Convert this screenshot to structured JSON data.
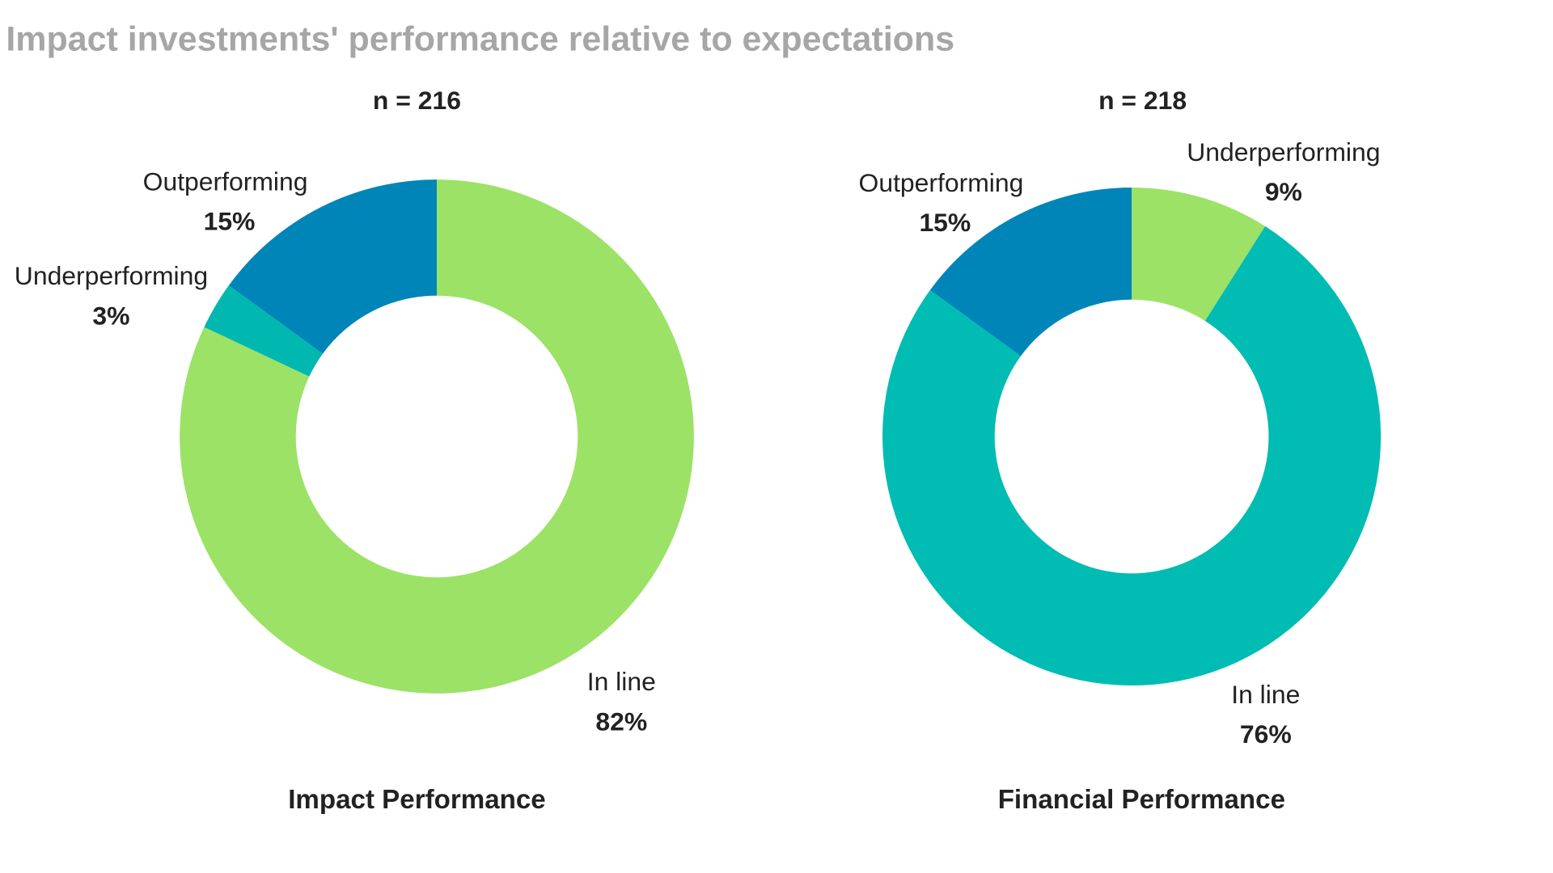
{
  "title": "Impact investments' performance relative to expectations",
  "chart_data": [
    {
      "type": "pie",
      "variant": "donut",
      "title": "Impact Performance",
      "sample_size": "n = 216",
      "categories": [
        "In line",
        "Underperforming",
        "Outperforming"
      ],
      "values": [
        82,
        3,
        15
      ],
      "value_labels": [
        "82%",
        "3%",
        "15%"
      ],
      "colors": [
        "#9be266",
        "#00b8b0",
        "#0085b8"
      ],
      "start": "top, clockwise"
    },
    {
      "type": "pie",
      "variant": "donut",
      "title": "Financial Performance",
      "sample_size": "n = 218",
      "categories": [
        "Underperforming",
        "In line",
        "Outperforming"
      ],
      "values": [
        9,
        76,
        15
      ],
      "value_labels": [
        "9%",
        "76%",
        "15%"
      ],
      "colors": [
        "#9be266",
        "#00bcb2",
        "#0085b8"
      ],
      "start": "top, clockwise"
    }
  ]
}
